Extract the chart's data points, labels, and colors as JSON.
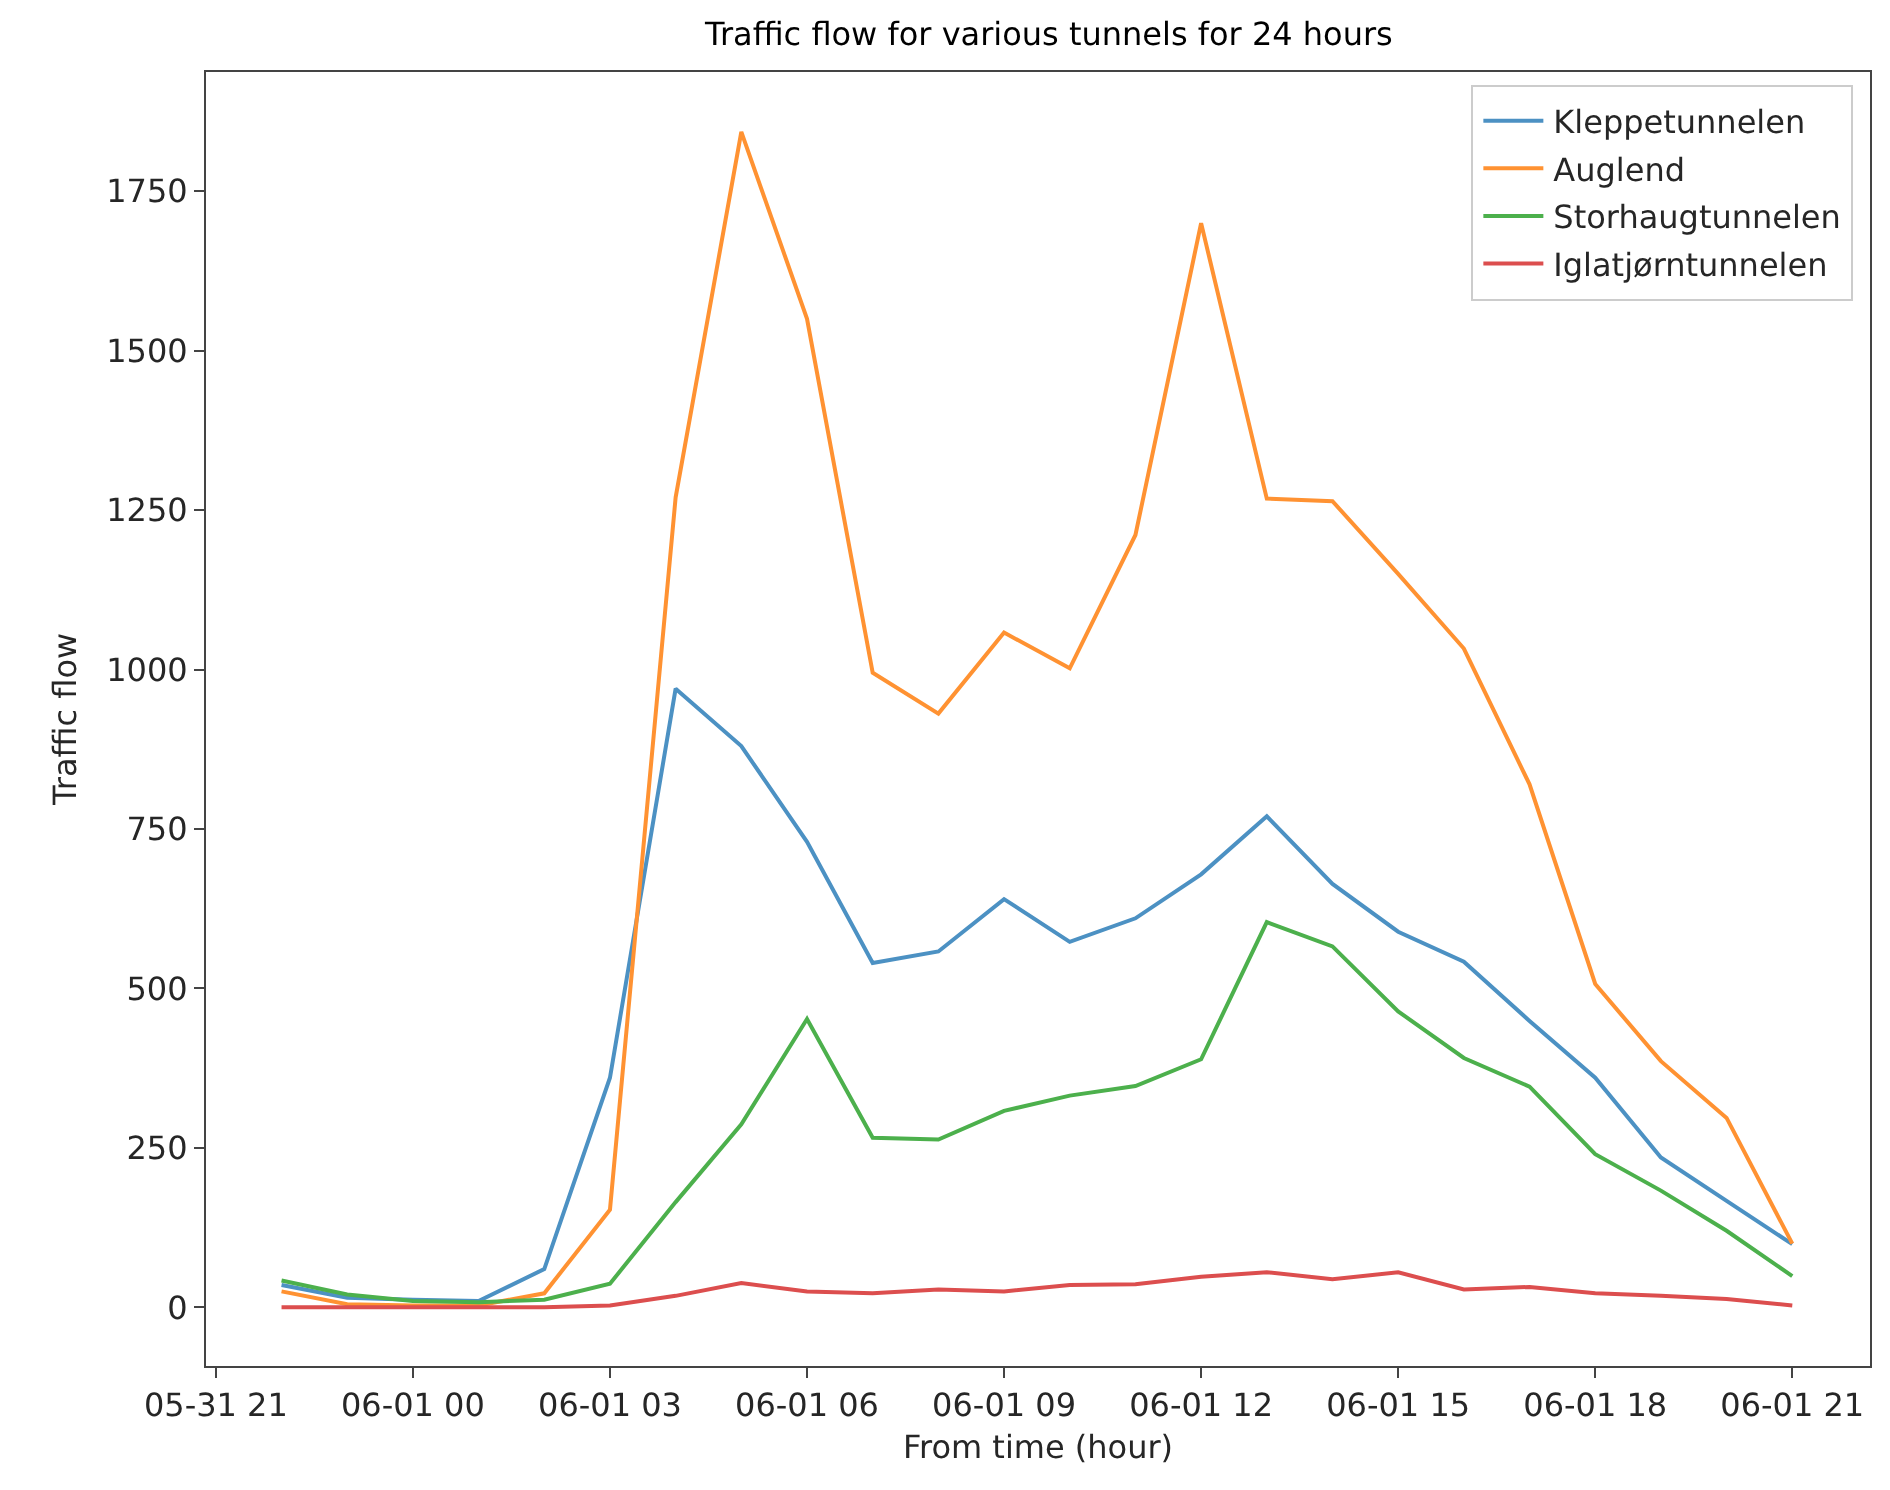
{
  "chart_data": {
    "type": "line",
    "title": "Traffic flow for various tunnels for 24 hours",
    "xlabel": "From time (hour)",
    "ylabel": "Traffic flow",
    "x": [
      "--05-31T22:00",
      "--05-31T23:00",
      "--06-01T00:00",
      "--06-01T01:00",
      "--06-01T02:00",
      "--06-01T03:00",
      "--06-01T04:00",
      "--06-01T05:00",
      "--06-01T06:00",
      "--06-01T07:00",
      "--06-01T08:00",
      "--06-01T09:00",
      "--06-01T10:00",
      "--06-01T11:00",
      "--06-01T12:00",
      "--06-01T13:00",
      "--06-01T14:00",
      "--06-01T15:00",
      "--06-01T16:00",
      "--06-01T17:00",
      "--06-01T18:00",
      "--06-01T19:00",
      "--06-01T20:00",
      "--06-01T21:00"
    ],
    "series": [
      {
        "name": "Kleppetunnelen",
        "color": "#4c91c3",
        "values": [
          35,
          15,
          12,
          10,
          60,
          360,
          970,
          880,
          730,
          540,
          558,
          640,
          573,
          610,
          679,
          770,
          664,
          589,
          542,
          449,
          360,
          235,
          167,
          99
        ]
      },
      {
        "name": "Auglend",
        "color": "#ff9232",
        "values": [
          25,
          5,
          3,
          3,
          22,
          153,
          1270,
          1843,
          1550,
          995,
          931,
          1058,
          1002,
          1211,
          1700,
          1268,
          1264,
          1150,
          1033,
          820,
          507,
          386,
          297,
          100
        ]
      },
      {
        "name": "Storhaugtunnelen",
        "color": "#4cb04c",
        "values": [
          42,
          20,
          10,
          8,
          12,
          37,
          165,
          287,
          452,
          266,
          263,
          308,
          332,
          347,
          389,
          604,
          566,
          464,
          391,
          346,
          240,
          183,
          120,
          49
        ]
      },
      {
        "name": "Iglatjørntunnelen",
        "color": "#dc4e4e",
        "values": [
          0,
          0,
          0,
          0,
          0,
          3,
          18,
          38,
          25,
          22,
          28,
          25,
          35,
          36,
          48,
          55,
          44,
          55,
          28,
          32,
          22,
          18,
          13,
          3
        ]
      }
    ],
    "xlim": [
      "--05-31T20:51",
      "--06-01T22:11"
    ],
    "xticks": [
      {
        "value": "--05-31T21:00",
        "label": "05-31 21"
      },
      {
        "value": "--06-01T00:00",
        "label": "06-01 00"
      },
      {
        "value": "--06-01T03:00",
        "label": "06-01 03"
      },
      {
        "value": "--06-01T06:00",
        "label": "06-01 06"
      },
      {
        "value": "--06-01T09:00",
        "label": "06-01 09"
      },
      {
        "value": "--06-01T12:00",
        "label": "06-01 12"
      },
      {
        "value": "--06-01T15:00",
        "label": "06-01 15"
      },
      {
        "value": "--06-01T18:00",
        "label": "06-01 18"
      },
      {
        "value": "--06-01T21:00",
        "label": "06-01 21"
      }
    ],
    "ylim": [
      -92,
      1937
    ],
    "yticks": [
      0,
      250,
      500,
      750,
      1000,
      1250,
      1500,
      1750
    ],
    "grid": false,
    "legend": "top right",
    "marker": "none",
    "line_style": "solid"
  }
}
